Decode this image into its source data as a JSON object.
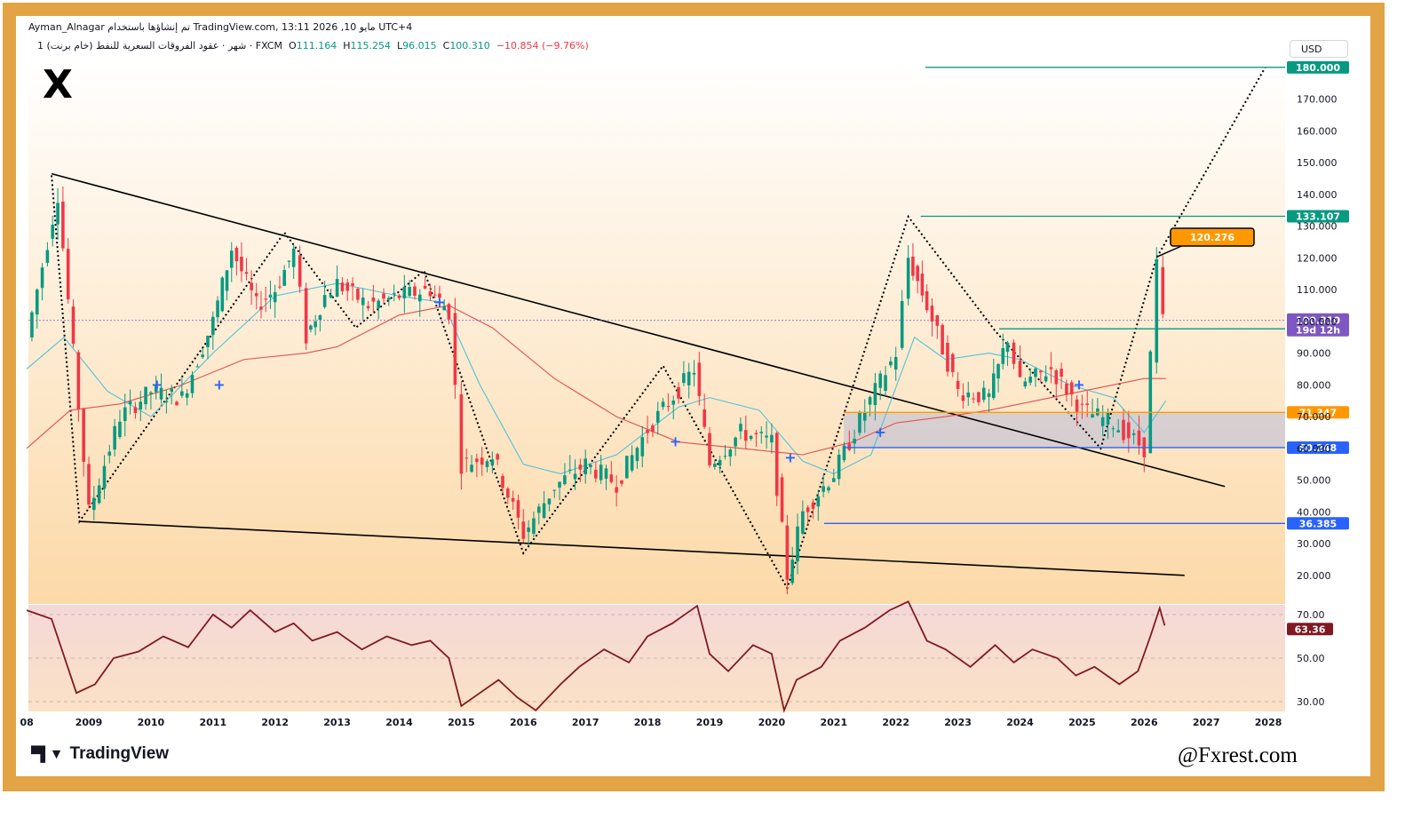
{
  "header": {
    "author": "Ayman_Alnagar",
    "published_with": "تم إنشاؤها باستخدام",
    "site": "TradingView.com",
    "datetime": "13:11 2026 ,مايو 10",
    "timezone": "UTC+4",
    "symbol_desc": "عقود الفروقات السعرية للنفط (خام برنت)",
    "interval": "1 شهر",
    "broker": "FXCM",
    "open_label": "O",
    "open": "111.164",
    "high_label": "H",
    "high": "115.254",
    "low_label": "L",
    "low": "96.015",
    "close_label": "C",
    "close": "100.310",
    "change": "−10.854 (−9.76%)"
  },
  "currency": "USD",
  "branding": {
    "logo_mark": "X",
    "tv_name": "TradingView",
    "watermark": "@Fxrest.com"
  },
  "colors": {
    "frame": "#e2a444",
    "up": "#089981",
    "down": "#f23645",
    "teal_line": "#089981",
    "orange": "#ff9800",
    "blue": "#2962ff",
    "rsi": "#801922",
    "price_tag": "#7e57c2"
  },
  "chart_data": [
    {
      "type": "candlestick",
      "timeframe": "monthly",
      "price_axis": {
        "min": 10,
        "max": 180,
        "ticks": [
          "20.000",
          "30.000",
          "40.000",
          "50.000",
          "60.000",
          "70.000",
          "80.000",
          "90.000",
          "100.000",
          "110.000",
          "120.000",
          "130.000",
          "140.000",
          "150.000",
          "160.000",
          "170.000"
        ]
      },
      "x_ticks": [
        "08",
        "2009",
        "2010",
        "2011",
        "2012",
        "2013",
        "2014",
        "2015",
        "2016",
        "2017",
        "2018",
        "2019",
        "2020",
        "2021",
        "2022",
        "2023",
        "2024",
        "2025",
        "2026",
        "2027",
        "2028"
      ],
      "series": [
        {
          "name": "monthly_closes",
          "x": [
            2008.0,
            2008.5,
            2009.0,
            2009.5,
            2010.0,
            2010.5,
            2011.0,
            2011.3,
            2011.7,
            2012.0,
            2012.3,
            2012.5,
            2012.8,
            2013.0,
            2013.5,
            2014.0,
            2014.5,
            2014.8,
            2015.0,
            2015.5,
            2016.0,
            2016.5,
            2017.0,
            2017.5,
            2018.0,
            2018.75,
            2019.0,
            2019.5,
            2020.0,
            2020.25,
            2020.5,
            2021.0,
            2021.5,
            2022.0,
            2022.2,
            2022.5,
            2023.0,
            2023.5,
            2023.8,
            2024.0,
            2024.5,
            2025.0,
            2025.5,
            2026.0,
            2026.2,
            2026.3
          ],
          "y": [
            95,
            140,
            40,
            70,
            78,
            76,
            100,
            123,
            105,
            110,
            122,
            95,
            108,
            112,
            105,
            108,
            110,
            103,
            55,
            58,
            33,
            48,
            55,
            49,
            66,
            85,
            55,
            65,
            62,
            20,
            40,
            52,
            72,
            90,
            120,
            105,
            78,
            76,
            95,
            80,
            85,
            72,
            68,
            60,
            118,
            100
          ]
        },
        {
          "name": "ma_fast",
          "x": [
            2008.0,
            2008.6,
            2009.3,
            2010.0,
            2011.0,
            2012.0,
            2013.0,
            2014.0,
            2014.7,
            2015.3,
            2016.0,
            2016.6,
            2017.5,
            2018.5,
            2019.0,
            2019.8,
            2020.5,
            2021.0,
            2021.6,
            2022.3,
            2022.8,
            2023.5,
            2024.0,
            2024.8,
            2025.5,
            2026.0,
            2026.35
          ],
          "y": [
            85,
            95,
            78,
            70,
            90,
            108,
            112,
            108,
            106,
            80,
            55,
            52,
            58,
            73,
            76,
            72,
            56,
            52,
            58,
            95,
            88,
            90,
            88,
            80,
            76,
            65,
            75
          ]
        },
        {
          "name": "ma_slow",
          "x": [
            2008.0,
            2008.7,
            2009.5,
            2010.5,
            2011.5,
            2012.5,
            2013.0,
            2014.0,
            2014.8,
            2015.5,
            2016.5,
            2017.5,
            2018.5,
            2019.5,
            2020.5,
            2021.3,
            2022.0,
            2022.8,
            2023.5,
            2024.5,
            2025.5,
            2026.0,
            2026.35
          ],
          "y": [
            60,
            72,
            74,
            80,
            88,
            90,
            92,
            102,
            105,
            98,
            82,
            70,
            62,
            60,
            58,
            62,
            68,
            70,
            72,
            76,
            80,
            82,
            82
          ]
        }
      ],
      "levels": [
        {
          "label": "180.000",
          "value": 180,
          "color": "#089981"
        },
        {
          "label": "133.107",
          "value": 133.107,
          "color": "#089981"
        },
        {
          "label": "97.660",
          "value": 97.66,
          "color": "#089981"
        },
        {
          "label": "71.347",
          "value": 71.347,
          "color": "#ff9800"
        },
        {
          "label": "60.248",
          "value": 60.248,
          "color": "#2962ff"
        },
        {
          "label": "36.385",
          "value": 36.385,
          "color": "#2962ff"
        }
      ],
      "annotations": {
        "target_callout": "120.276",
        "last_price": "100.310",
        "countdown": "19d 12h"
      }
    },
    {
      "type": "line",
      "name": "RSI",
      "y_ticks": [
        "70.00",
        "50.00",
        "30.00"
      ],
      "value_label": "63.36",
      "x": [
        2008.0,
        2008.4,
        2008.8,
        2009.1,
        2009.4,
        2009.8,
        2010.2,
        2010.6,
        2011.0,
        2011.3,
        2011.6,
        2012.0,
        2012.3,
        2012.6,
        2013.0,
        2013.4,
        2013.8,
        2014.2,
        2014.5,
        2014.8,
        2015.0,
        2015.3,
        2015.6,
        2015.9,
        2016.2,
        2016.6,
        2016.9,
        2017.3,
        2017.7,
        2018.0,
        2018.4,
        2018.8,
        2019.0,
        2019.3,
        2019.7,
        2020.0,
        2020.2,
        2020.4,
        2020.8,
        2021.1,
        2021.5,
        2021.9,
        2022.2,
        2022.5,
        2022.8,
        2023.2,
        2023.6,
        2023.9,
        2024.2,
        2024.6,
        2024.9,
        2025.2,
        2025.6,
        2025.9,
        2026.1,
        2026.25,
        2026.33
      ],
      "y": [
        72,
        68,
        34,
        38,
        50,
        53,
        60,
        55,
        70,
        64,
        72,
        62,
        66,
        58,
        62,
        54,
        60,
        56,
        58,
        50,
        28,
        34,
        40,
        32,
        26,
        38,
        46,
        54,
        48,
        60,
        66,
        74,
        52,
        44,
        56,
        52,
        26,
        40,
        46,
        58,
        64,
        72,
        76,
        58,
        54,
        46,
        56,
        48,
        54,
        50,
        42,
        46,
        38,
        44,
        60,
        73,
        65
      ]
    }
  ]
}
